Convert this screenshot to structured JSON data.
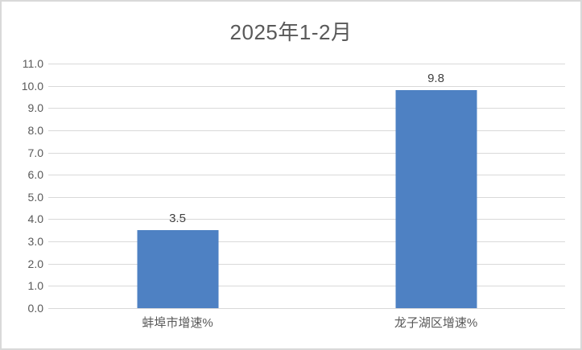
{
  "chart_data": {
    "type": "bar",
    "title": "2025年1-2月",
    "categories": [
      "蚌埠市增速%",
      "龙子湖区增速%"
    ],
    "values": [
      3.5,
      9.8
    ],
    "data_labels": [
      "3.5",
      "9.8"
    ],
    "xlabel": "",
    "ylabel": "",
    "ylim": [
      0,
      11
    ],
    "y_tick_step": 1,
    "y_tick_labels": [
      "0.0",
      "1.0",
      "2.0",
      "3.0",
      "4.0",
      "5.0",
      "6.0",
      "7.0",
      "8.0",
      "9.0",
      "10.0",
      "11.0"
    ],
    "grid": true,
    "legend": "none",
    "style": {
      "bar_color": "#4e81c3",
      "grid_color": "#d9d9d9",
      "frame_border_color": "#d9d9d9",
      "title_color": "#595959",
      "axis_label_color": "#595959",
      "data_label_color": "#404040",
      "background": "#ffffff"
    }
  }
}
